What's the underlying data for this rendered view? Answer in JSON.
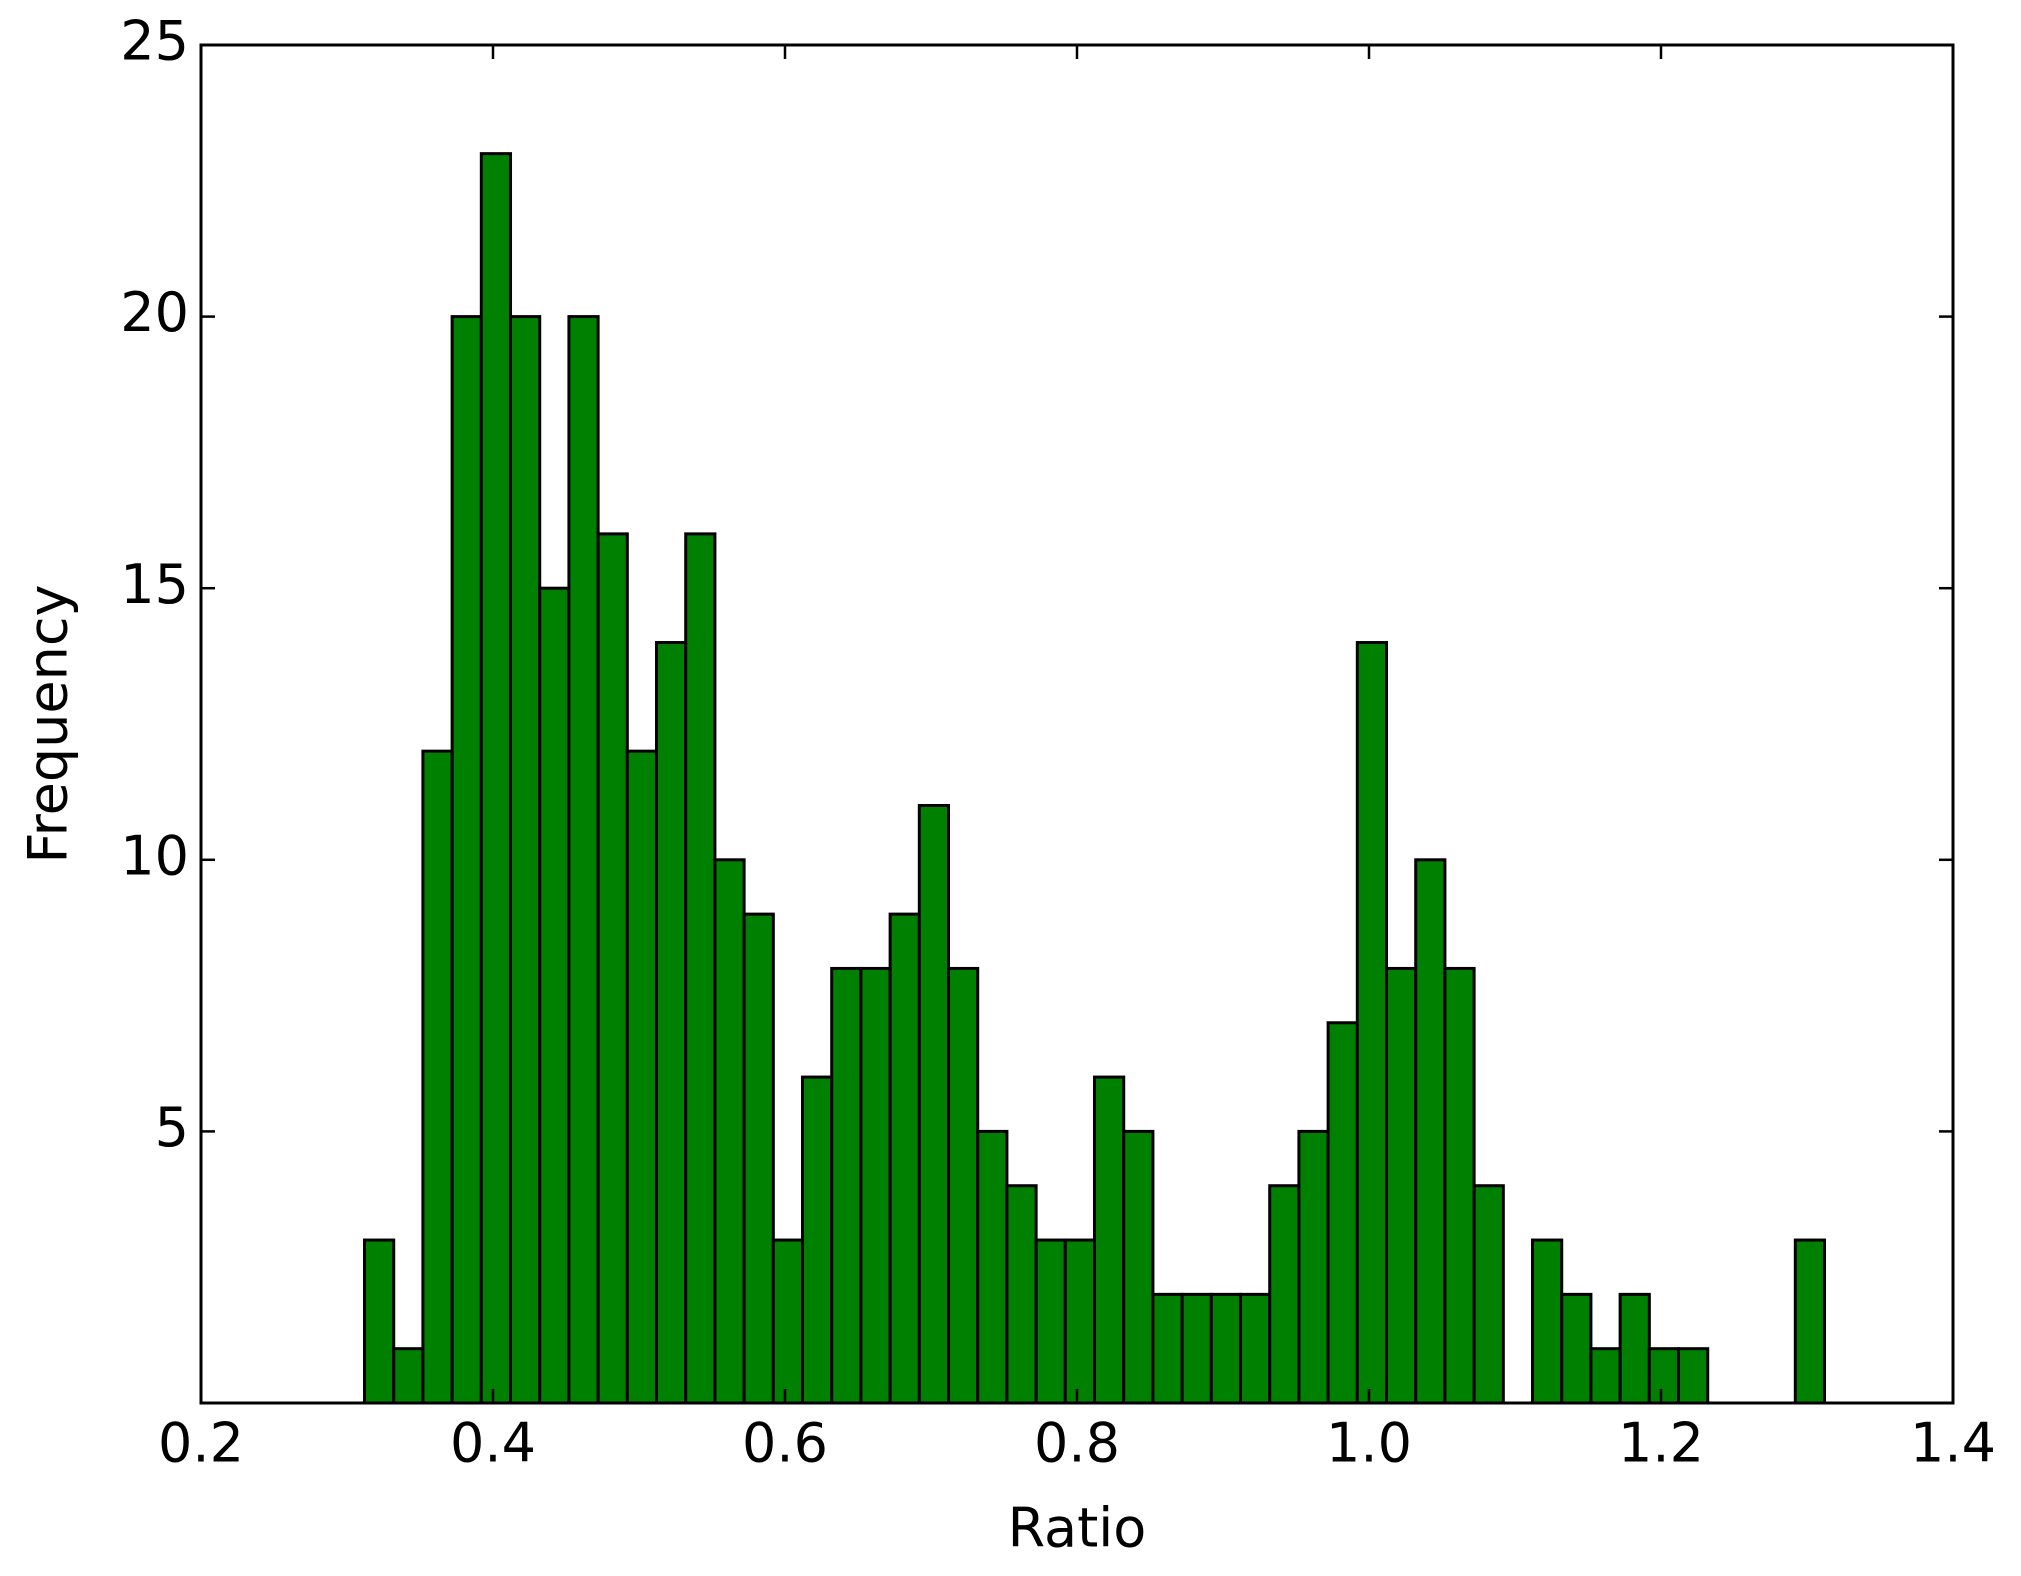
{
  "chart_data": {
    "type": "histogram",
    "x_label": "Ratio",
    "y_label": "Frequency",
    "color": "#008000",
    "bins": [
      0.312,
      0.332,
      0.352,
      0.372,
      0.392,
      0.412,
      0.432,
      0.452,
      0.472,
      0.492,
      0.512,
      0.532,
      0.552,
      0.572,
      0.592,
      0.612,
      0.632,
      0.652,
      0.672,
      0.692,
      0.712,
      0.732,
      0.752,
      0.772,
      0.792,
      0.812,
      0.832,
      0.852,
      0.872,
      0.892,
      0.912,
      0.932,
      0.952,
      0.972,
      0.992,
      1.012,
      1.032,
      1.052,
      1.072,
      1.092,
      1.112,
      1.132,
      1.152,
      1.172,
      1.192,
      1.212,
      1.232,
      1.252,
      1.272,
      1.292,
      1.312
    ],
    "values": [
      3,
      1,
      12,
      20,
      23,
      20,
      15,
      20,
      16,
      12,
      14,
      16,
      10,
      9,
      3,
      6,
      8,
      8,
      9,
      11,
      8,
      5,
      4,
      3,
      3,
      6,
      5,
      2,
      2,
      2,
      2,
      4,
      5,
      7,
      14,
      8,
      10,
      8,
      4,
      0,
      3,
      2,
      1,
      2,
      1,
      1,
      0,
      0,
      0,
      3
    ],
    "xlim": [
      0.2,
      1.4
    ],
    "xticks": [
      0.2,
      0.4,
      0.6,
      0.8,
      {
        "value": 1,
        "label": "1.0"
      },
      1.2,
      1.4
    ],
    "ylim": [
      0,
      25
    ],
    "yticks": [
      5,
      10,
      15,
      20,
      25
    ]
  }
}
